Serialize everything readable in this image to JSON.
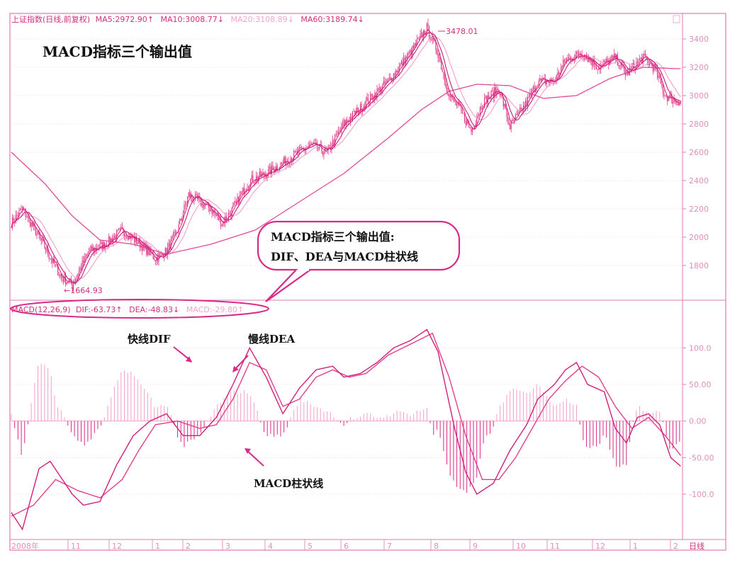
{
  "chart_data": [
    {
      "type": "line",
      "panel": "price",
      "header": {
        "index_name": "上证指数(日线,前复权)",
        "ma5": "MA5:2972.90↑",
        "ma10": "MA10:3008.77↓",
        "ma20": "MA20:3108.89↓",
        "ma60": "MA60:3189.74↓"
      },
      "title": "MACD指标三个输出值",
      "ylim": [
        1600,
        3450
      ],
      "y_ticks": [
        "3400",
        "3200",
        "3000",
        "2800",
        "2600",
        "2400",
        "2200",
        "2000",
        "1800"
      ],
      "y_tick_values": [
        3400,
        3200,
        3000,
        2800,
        2600,
        2400,
        2200,
        2000,
        1800
      ],
      "close_keypoints": [
        [
          0,
          2100
        ],
        [
          10,
          2200
        ],
        [
          25,
          2000
        ],
        [
          45,
          1720
        ],
        [
          55,
          1665
        ],
        [
          70,
          1900
        ],
        [
          85,
          1950
        ],
        [
          100,
          2050
        ],
        [
          115,
          1960
        ],
        [
          130,
          1850
        ],
        [
          140,
          1900
        ],
        [
          150,
          2050
        ],
        [
          160,
          2300
        ],
        [
          170,
          2250
        ],
        [
          180,
          2200
        ],
        [
          190,
          2100
        ],
        [
          200,
          2200
        ],
        [
          215,
          2400
        ],
        [
          230,
          2450
        ],
        [
          240,
          2500
        ],
        [
          255,
          2580
        ],
        [
          270,
          2650
        ],
        [
          285,
          2600
        ],
        [
          300,
          2800
        ],
        [
          320,
          2950
        ],
        [
          340,
          3100
        ],
        [
          360,
          3300
        ],
        [
          375,
          3478
        ],
        [
          385,
          3300
        ],
        [
          395,
          3000
        ],
        [
          405,
          2900
        ],
        [
          415,
          2750
        ],
        [
          425,
          2950
        ],
        [
          440,
          3050
        ],
        [
          450,
          2780
        ],
        [
          465,
          2950
        ],
        [
          475,
          3100
        ],
        [
          490,
          3100
        ],
        [
          500,
          3250
        ],
        [
          515,
          3300
        ],
        [
          530,
          3200
        ],
        [
          545,
          3270
        ],
        [
          555,
          3150
        ],
        [
          570,
          3270
        ],
        [
          580,
          3200
        ],
        [
          590,
          3000
        ],
        [
          600,
          2960
        ]
      ],
      "ma60_keypoints": [
        [
          0,
          2600
        ],
        [
          30,
          2380
        ],
        [
          55,
          2150
        ],
        [
          80,
          1980
        ],
        [
          110,
          1950
        ],
        [
          140,
          1880
        ],
        [
          180,
          1950
        ],
        [
          220,
          2050
        ],
        [
          260,
          2250
        ],
        [
          300,
          2450
        ],
        [
          340,
          2700
        ],
        [
          370,
          2900
        ],
        [
          395,
          3030
        ],
        [
          420,
          3080
        ],
        [
          450,
          3070
        ],
        [
          480,
          2980
        ],
        [
          510,
          3000
        ],
        [
          540,
          3120
        ],
        [
          570,
          3200
        ],
        [
          600,
          3190
        ]
      ],
      "annotations": {
        "peak_label": "3478.01",
        "low_label": "←1664.93",
        "callout_line1": "MACD指标三个输出值:",
        "callout_line2": "DIF、DEA与MACD柱状线"
      },
      "colors": {
        "candle": "#e0408a",
        "ma_light": "#f2a6cb",
        "ma60": "#e04a9a",
        "grid": "#e8a0c4",
        "text": "#d0307f"
      }
    },
    {
      "type": "line",
      "panel": "macd",
      "header": {
        "params": "MACD(12,26,9)",
        "dif": "DIF:-63.73↑",
        "dea": "DEA:-48.83↓",
        "macd": "MACD:-29.80↑"
      },
      "ylim": [
        -160,
        140
      ],
      "y_ticks": [
        "100.0",
        "50.00",
        "0.00",
        "-50.00",
        "-100.0"
      ],
      "y_tick_values": [
        100,
        50,
        0,
        -50,
        -100
      ],
      "series": [
        {
          "name": "快线DIF",
          "keypoints": [
            [
              0,
              -125
            ],
            [
              10,
              -148
            ],
            [
              25,
              -65
            ],
            [
              35,
              -55
            ],
            [
              55,
              -100
            ],
            [
              65,
              -115
            ],
            [
              80,
              -110
            ],
            [
              95,
              -60
            ],
            [
              110,
              -20
            ],
            [
              125,
              0
            ],
            [
              140,
              10
            ],
            [
              155,
              -20
            ],
            [
              170,
              -20
            ],
            [
              185,
              5
            ],
            [
              200,
              50
            ],
            [
              215,
              100
            ],
            [
              230,
              60
            ],
            [
              245,
              10
            ],
            [
              260,
              45
            ],
            [
              275,
              70
            ],
            [
              290,
              75
            ],
            [
              300,
              60
            ],
            [
              315,
              65
            ],
            [
              330,
              80
            ],
            [
              345,
              100
            ],
            [
              360,
              110
            ],
            [
              375,
              125
            ],
            [
              385,
              95
            ],
            [
              400,
              -10
            ],
            [
              410,
              -70
            ],
            [
              420,
              -100
            ],
            [
              435,
              -85
            ],
            [
              450,
              -40
            ],
            [
              465,
              -5
            ],
            [
              475,
              30
            ],
            [
              490,
              50
            ],
            [
              500,
              70
            ],
            [
              510,
              80
            ],
            [
              520,
              50
            ],
            [
              535,
              40
            ],
            [
              545,
              -10
            ],
            [
              555,
              -30
            ],
            [
              565,
              5
            ],
            [
              575,
              10
            ],
            [
              585,
              -5
            ],
            [
              595,
              -50
            ],
            [
              605,
              -63
            ]
          ]
        },
        {
          "name": "慢线DEA",
          "keypoints": [
            [
              0,
              -130
            ],
            [
              20,
              -115
            ],
            [
              40,
              -80
            ],
            [
              60,
              -95
            ],
            [
              80,
              -105
            ],
            [
              100,
              -80
            ],
            [
              115,
              -40
            ],
            [
              130,
              -5
            ],
            [
              150,
              0
            ],
            [
              170,
              -10
            ],
            [
              185,
              -5
            ],
            [
              200,
              30
            ],
            [
              215,
              80
            ],
            [
              230,
              70
            ],
            [
              245,
              20
            ],
            [
              260,
              30
            ],
            [
              275,
              60
            ],
            [
              290,
              70
            ],
            [
              305,
              60
            ],
            [
              320,
              65
            ],
            [
              340,
              90
            ],
            [
              360,
              105
            ],
            [
              380,
              120
            ],
            [
              395,
              60
            ],
            [
              410,
              -20
            ],
            [
              425,
              -80
            ],
            [
              440,
              -80
            ],
            [
              455,
              -50
            ],
            [
              470,
              -10
            ],
            [
              485,
              30
            ],
            [
              500,
              55
            ],
            [
              515,
              75
            ],
            [
              530,
              60
            ],
            [
              545,
              20
            ],
            [
              560,
              -10
            ],
            [
              575,
              5
            ],
            [
              590,
              -20
            ],
            [
              605,
              -49
            ]
          ]
        }
      ],
      "histogram_label": "MACD柱状线",
      "colors": {
        "dif": "#d11f7c",
        "dea": "#e0408a",
        "bar_pos": "#f0a0c8",
        "bar_neg": "#d82a88"
      }
    }
  ],
  "time_axis": {
    "labels": [
      "2008年",
      "11",
      "12",
      "1",
      "2",
      "3",
      "4",
      "5",
      "6",
      "7",
      "8",
      "9",
      "10",
      "11",
      "12",
      "1",
      "2"
    ],
    "period": "日线"
  }
}
